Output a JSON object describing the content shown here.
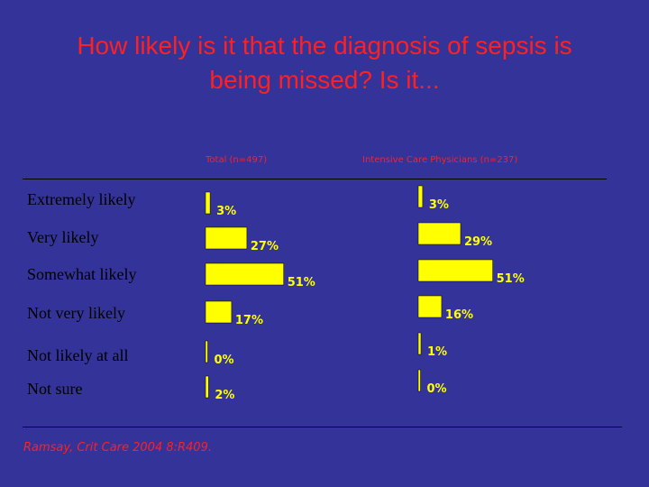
{
  "title": {
    "line1": "How likely is it that the diagnosis of sepsis is",
    "line2": "being missed?  Is it..."
  },
  "source": "Ramsay, Crit Care 2004 8:R409.",
  "colors": {
    "background": "#333399",
    "bar": "#ffff00",
    "title": "#ff2020",
    "label": "#ffff00"
  },
  "chart_data": {
    "type": "bar",
    "orientation": "horizontal",
    "categories": [
      "Extremely likely",
      "Very likely",
      "Somewhat likely",
      "Not very likely",
      "Not likely at all",
      "Not sure"
    ],
    "unit": "%",
    "panels": [
      {
        "title": "Total (n=497)",
        "values": [
          3,
          27,
          51,
          17,
          0,
          2
        ],
        "labels": [
          "3%",
          "27%",
          "51%",
          "17%",
          "0%",
          "2%"
        ]
      },
      {
        "title": "Intensive Care Physicians (n=237)",
        "values": [
          3,
          29,
          51,
          16,
          1,
          0
        ],
        "labels": [
          "3%",
          "29%",
          "51%",
          "16%",
          "1%",
          "0%"
        ]
      }
    ]
  }
}
